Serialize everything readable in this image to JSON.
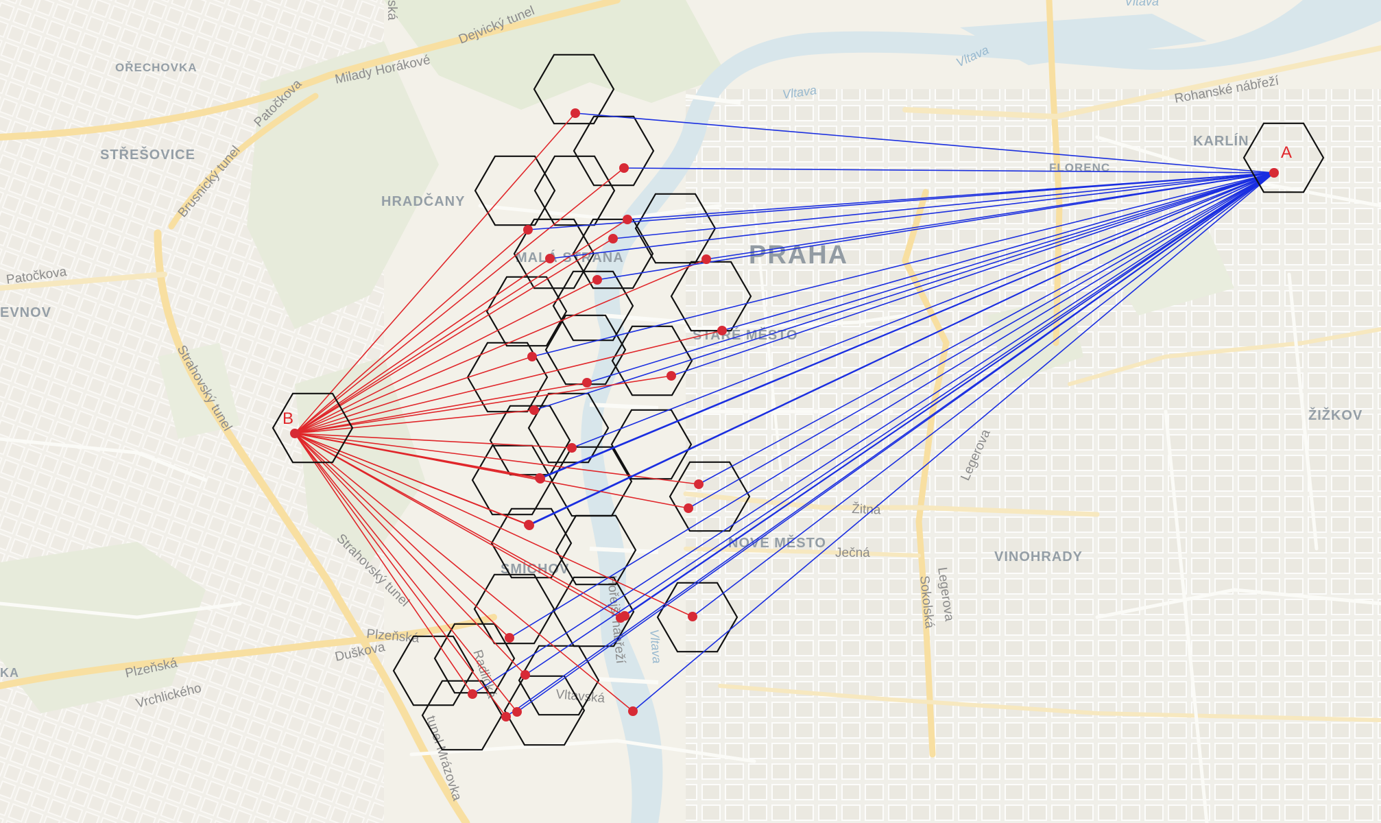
{
  "map": {
    "districts": [
      {
        "name": "OŘECHOVKA"
      },
      {
        "name": "STŘEŠOVICE"
      },
      {
        "name": "HRADČANY"
      },
      {
        "name": "MALÁ STRANA"
      },
      {
        "name": "STARÉ MĚSTO"
      },
      {
        "name": "KARLÍN"
      },
      {
        "name": "FLORENC"
      },
      {
        "name": "ŽIŽKOV"
      },
      {
        "name": "VINOHRADY"
      },
      {
        "name": "NOVÉ MĚSTO"
      },
      {
        "name": "SMÍCHOV"
      },
      {
        "name": "EVNOV"
      },
      {
        "name": "KA"
      }
    ],
    "city": "PRAHA",
    "streets": [
      {
        "name": "Dejvický tunel"
      },
      {
        "name": "Milady Horákové"
      },
      {
        "name": "Patočkova"
      },
      {
        "name": "Brusnický tunel"
      },
      {
        "name": "Patočkova"
      },
      {
        "name": "Strahovský tunel"
      },
      {
        "name": "Strahovský tunel"
      },
      {
        "name": "Rohanské nábřeží"
      },
      {
        "name": "Plzeňská"
      },
      {
        "name": "Plzeňská"
      },
      {
        "name": "Duškova"
      },
      {
        "name": "Vrchlického"
      },
      {
        "name": "tunel Mrázovka"
      },
      {
        "name": "Legerova"
      },
      {
        "name": "Legerova"
      },
      {
        "name": "Sokolská"
      },
      {
        "name": "Žitná"
      },
      {
        "name": "Ječná"
      },
      {
        "name": "Radlická"
      },
      {
        "name": "Vltavská"
      },
      {
        "name": "Hořejší nábřeží"
      },
      {
        "name": "ská"
      }
    ],
    "water": [
      {
        "name": "Vltava"
      },
      {
        "name": "Vltava"
      },
      {
        "name": "Vltava"
      },
      {
        "name": "Vltava"
      }
    ]
  },
  "overlay": {
    "endpoint_a": {
      "label": "A"
    },
    "endpoint_b": {
      "label": "B"
    },
    "line_a_color": "#1a2ee0",
    "line_b_color": "#e0262a",
    "point_color": "#d72a35",
    "hex_cell_count": 27,
    "point_count": 27
  }
}
